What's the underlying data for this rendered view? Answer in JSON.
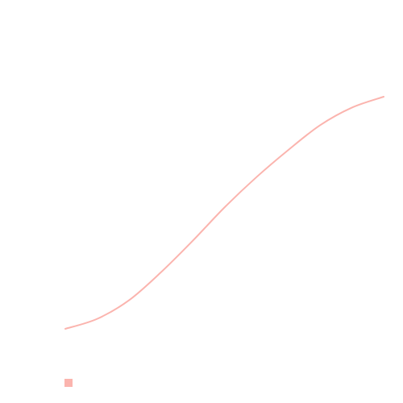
{
  "chart_data": {
    "type": "line",
    "title": "",
    "xlabel": "",
    "ylabel": "",
    "grid": false,
    "legend_position": "bottom-left",
    "x": [
      0,
      0.1,
      0.2,
      0.3,
      0.4,
      0.5,
      0.6,
      0.7,
      0.8,
      0.9,
      1.0
    ],
    "xlim": [
      0,
      1
    ],
    "ylim": [
      0,
      1
    ],
    "series": [
      {
        "name": "",
        "color": "#fbb4ae",
        "values": [
          0.0,
          0.043,
          0.123,
          0.243,
          0.379,
          0.523,
          0.653,
          0.77,
          0.877,
          0.953,
          1.0
        ]
      }
    ]
  }
}
